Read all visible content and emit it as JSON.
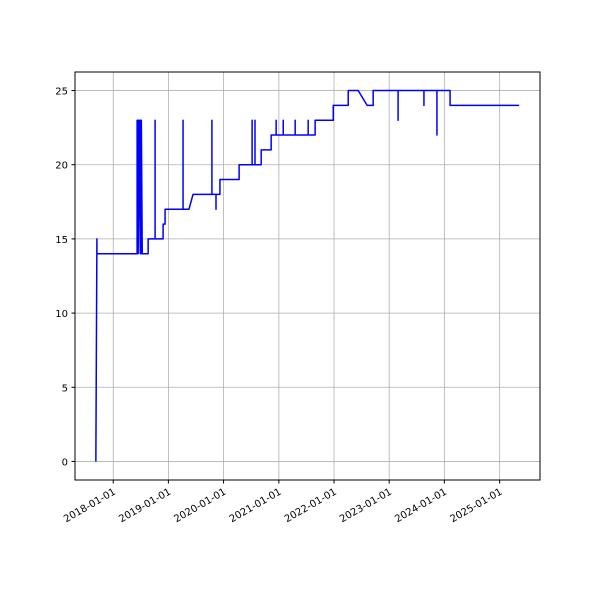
{
  "chart_data": {
    "type": "line",
    "color": "#0000ff",
    "grid": true,
    "x": [
      "2017-09-08",
      "2017-09-15",
      "2017-09-15",
      "2018-06-08",
      "2018-06-08",
      "2018-06-15",
      "2018-06-15",
      "2018-06-22",
      "2018-06-29",
      "2018-06-29",
      "2018-07-06",
      "2018-07-06",
      "2018-07-12",
      "2018-07-19",
      "2018-08-20",
      "2018-08-20",
      "2018-10-05",
      "2018-10-05",
      "2018-10-05",
      "2018-11-27",
      "2018-11-27",
      "2018-12-10",
      "2018-12-10",
      "2019-04-08",
      "2019-04-08",
      "2019-04-08",
      "2019-05-17",
      "2019-06-13",
      "2019-10-16",
      "2019-10-16",
      "2019-10-16",
      "2019-11-12",
      "2019-11-12",
      "2019-11-12",
      "2019-12-08",
      "2019-12-08",
      "2020-04-13",
      "2020-04-13",
      "2020-07-08",
      "2020-07-08",
      "2020-07-08",
      "2020-07-27",
      "2020-07-27",
      "2020-07-27",
      "2020-09-06",
      "2020-09-06",
      "2020-11-11",
      "2020-11-11",
      "2020-12-14",
      "2020-12-14",
      "2020-12-14",
      "2021-01-30",
      "2021-01-30",
      "2021-01-30",
      "2021-04-19",
      "2021-04-19",
      "2021-04-19",
      "2021-07-14",
      "2021-07-14",
      "2021-07-14",
      "2021-08-29",
      "2021-08-29",
      "2021-12-27",
      "2021-12-27",
      "2022-04-05",
      "2022-04-05",
      "2022-06-10",
      "2022-08-08",
      "2022-09-17",
      "2022-09-17",
      "2023-03-01",
      "2023-03-01",
      "2023-03-01",
      "2023-08-19",
      "2023-08-19",
      "2023-08-19",
      "2023-11-13",
      "2023-11-13",
      "2023-11-13",
      "2024-02-08",
      "2024-02-08",
      "2025-05-10"
    ],
    "values": [
      0,
      15,
      14,
      14,
      23,
      23,
      14,
      23,
      14,
      23,
      14,
      23,
      14,
      14,
      14,
      15,
      15,
      23,
      15,
      15,
      16,
      16,
      17,
      17,
      23,
      17,
      17,
      18,
      18,
      23,
      18,
      18,
      17,
      18,
      18,
      19,
      19,
      20,
      20,
      23,
      20,
      20,
      23,
      20,
      20,
      21,
      21,
      22,
      22,
      23,
      22,
      22,
      23,
      22,
      22,
      23,
      22,
      22,
      23,
      22,
      22,
      23,
      23,
      24,
      24,
      25,
      25,
      24,
      24,
      25,
      25,
      23,
      25,
      25,
      24,
      25,
      25,
      22,
      25,
      25,
      24,
      24
    ],
    "xlim": [
      "2017-04-23",
      "2025-09-25"
    ],
    "xticks": [
      "2018-01-01",
      "2019-01-01",
      "2020-01-01",
      "2021-01-01",
      "2022-01-01",
      "2023-01-01",
      "2024-01-01",
      "2025-01-01"
    ],
    "ylim": [
      -1.25,
      26.25
    ],
    "yticks": [
      0,
      5,
      10,
      15,
      20,
      25
    ]
  }
}
